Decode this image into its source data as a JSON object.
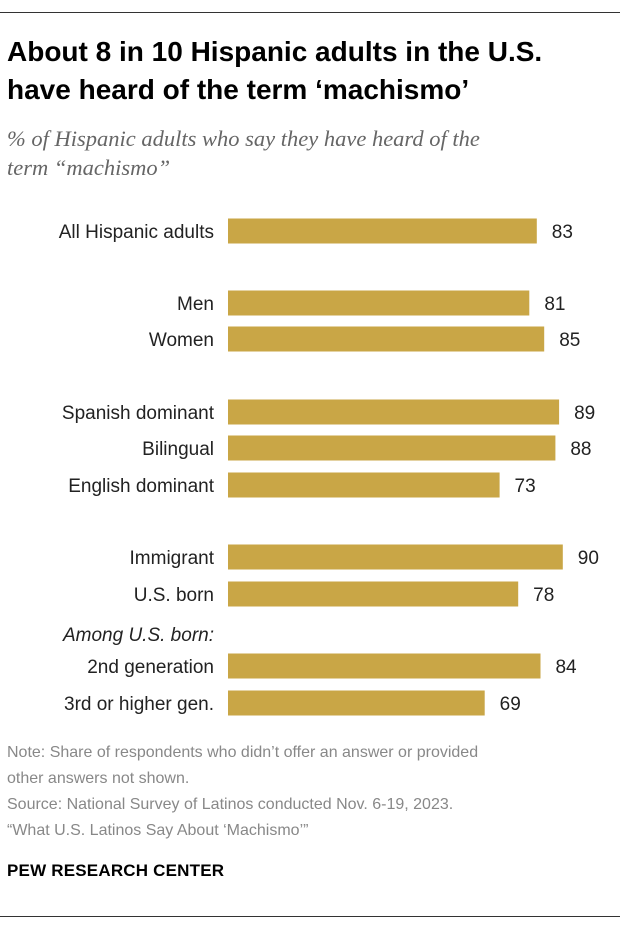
{
  "header": {
    "title_line1": "About 8 in 10 Hispanic adults in the U.S.",
    "title_line2": "have heard of the term ‘machismo’",
    "subtitle_line1": "% of Hispanic adults who say they have heard of the",
    "subtitle_line2": "term “machismo”"
  },
  "chart_data": {
    "type": "bar",
    "orientation": "horizontal",
    "title": "About 8 in 10 Hispanic adults in the U.S. have heard of the term ‘machismo’",
    "xlabel": "",
    "ylabel": "",
    "xlim": [
      0,
      100
    ],
    "bar_color": "#c9a646",
    "group_label": "Among U.S. born:",
    "categories": [
      "All Hispanic adults",
      "Men",
      "Women",
      "Spanish dominant",
      "Bilingual",
      "English dominant",
      "Immigrant",
      "U.S. born",
      "2nd generation",
      "3rd or higher gen."
    ],
    "values": [
      83,
      81,
      85,
      89,
      88,
      73,
      90,
      78,
      84,
      69
    ]
  },
  "footer": {
    "note_line1": "Note: Share of respondents who didn’t offer an answer or provided",
    "note_line2": "other answers not shown.",
    "source_line1": "Source: National Survey of Latinos conducted Nov. 6-19, 2023.",
    "source_line2": "“What U.S. Latinos Say About ‘Machismo’”",
    "brand": "PEW RESEARCH CENTER"
  }
}
